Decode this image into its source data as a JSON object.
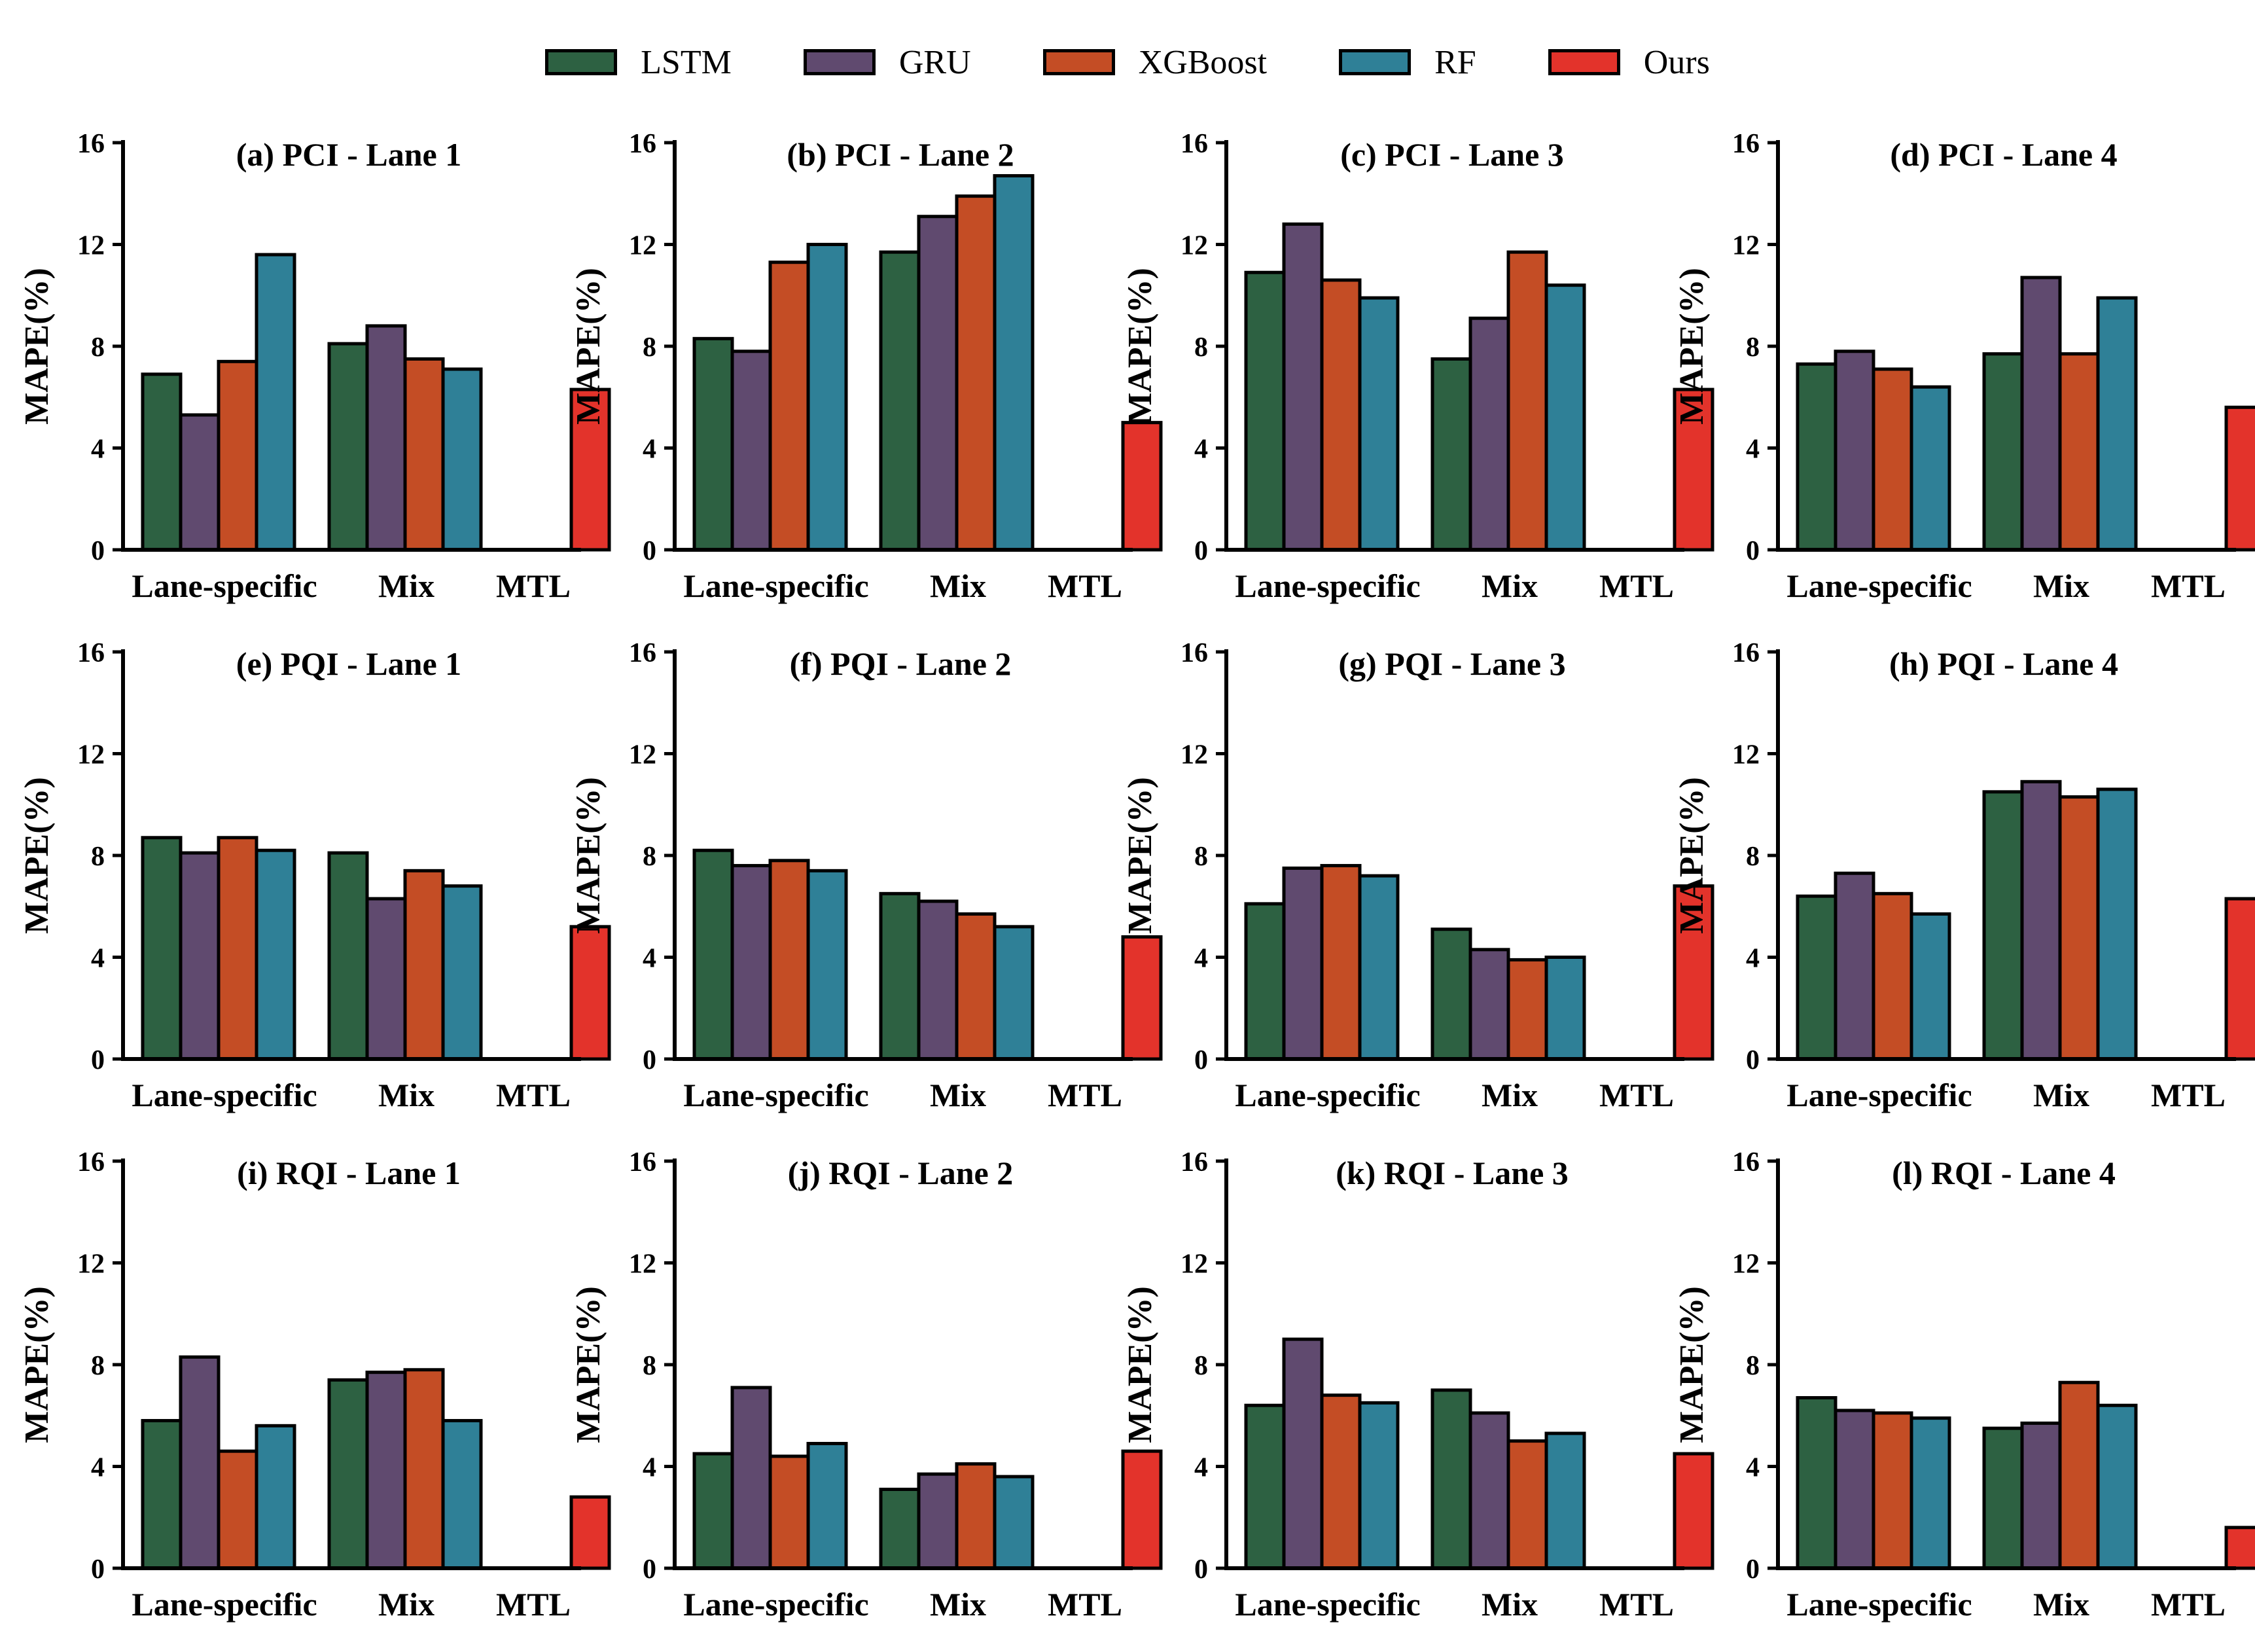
{
  "legend": [
    {
      "name": "LSTM",
      "color": "#2d6142"
    },
    {
      "name": "GRU",
      "color": "#604a6f"
    },
    {
      "name": "XGBoost",
      "color": "#c44d25"
    },
    {
      "name": "RF",
      "color": "#2f8097"
    },
    {
      "name": "Ours",
      "color": "#e3332b"
    }
  ],
  "chart_data": [
    {
      "type": "bar",
      "title": "(a) PCI - Lane 1",
      "ylabel": "MAPE(%)",
      "ylim": [
        0,
        16
      ],
      "yticks": [
        0,
        4,
        8,
        12,
        16
      ],
      "categories": [
        "Lane-specific",
        "Mix",
        "MTL"
      ],
      "series": [
        {
          "name": "LSTM",
          "values": [
            6.9,
            8.1,
            null
          ]
        },
        {
          "name": "GRU",
          "values": [
            5.3,
            8.8,
            null
          ]
        },
        {
          "name": "XGBoost",
          "values": [
            7.4,
            7.5,
            null
          ]
        },
        {
          "name": "RF",
          "values": [
            11.6,
            7.1,
            null
          ]
        },
        {
          "name": "Ours",
          "values": [
            null,
            null,
            6.3
          ]
        }
      ]
    },
    {
      "type": "bar",
      "title": "(b) PCI - Lane 2",
      "ylabel": "MAPE(%)",
      "ylim": [
        0,
        16
      ],
      "yticks": [
        0,
        4,
        8,
        12,
        16
      ],
      "categories": [
        "Lane-specific",
        "Mix",
        "MTL"
      ],
      "series": [
        {
          "name": "LSTM",
          "values": [
            8.3,
            11.7,
            null
          ]
        },
        {
          "name": "GRU",
          "values": [
            7.8,
            13.1,
            null
          ]
        },
        {
          "name": "XGBoost",
          "values": [
            11.3,
            13.9,
            null
          ]
        },
        {
          "name": "RF",
          "values": [
            12.0,
            14.7,
            null
          ]
        },
        {
          "name": "Ours",
          "values": [
            null,
            null,
            5.0
          ]
        }
      ]
    },
    {
      "type": "bar",
      "title": "(c) PCI - Lane 3",
      "ylabel": "MAPE(%)",
      "ylim": [
        0,
        16
      ],
      "yticks": [
        0,
        4,
        8,
        12,
        16
      ],
      "categories": [
        "Lane-specific",
        "Mix",
        "MTL"
      ],
      "series": [
        {
          "name": "LSTM",
          "values": [
            10.9,
            7.5,
            null
          ]
        },
        {
          "name": "GRU",
          "values": [
            12.8,
            9.1,
            null
          ]
        },
        {
          "name": "XGBoost",
          "values": [
            10.6,
            11.7,
            null
          ]
        },
        {
          "name": "RF",
          "values": [
            9.9,
            10.4,
            null
          ]
        },
        {
          "name": "Ours",
          "values": [
            null,
            null,
            6.3
          ]
        }
      ]
    },
    {
      "type": "bar",
      "title": "(d) PCI - Lane 4",
      "ylabel": "MAPE(%)",
      "ylim": [
        0,
        16
      ],
      "yticks": [
        0,
        4,
        8,
        12,
        16
      ],
      "categories": [
        "Lane-specific",
        "Mix",
        "MTL"
      ],
      "series": [
        {
          "name": "LSTM",
          "values": [
            7.3,
            7.7,
            null
          ]
        },
        {
          "name": "GRU",
          "values": [
            7.8,
            10.7,
            null
          ]
        },
        {
          "name": "XGBoost",
          "values": [
            7.1,
            7.7,
            null
          ]
        },
        {
          "name": "RF",
          "values": [
            6.4,
            9.9,
            null
          ]
        },
        {
          "name": "Ours",
          "values": [
            null,
            null,
            5.6
          ]
        }
      ]
    },
    {
      "type": "bar",
      "title": "(e) PQI - Lane 1",
      "ylabel": "MAPE(%)",
      "ylim": [
        0,
        16
      ],
      "yticks": [
        0,
        4,
        8,
        12,
        16
      ],
      "categories": [
        "Lane-specific",
        "Mix",
        "MTL"
      ],
      "series": [
        {
          "name": "LSTM",
          "values": [
            8.7,
            8.1,
            null
          ]
        },
        {
          "name": "GRU",
          "values": [
            8.1,
            6.3,
            null
          ]
        },
        {
          "name": "XGBoost",
          "values": [
            8.7,
            7.4,
            null
          ]
        },
        {
          "name": "RF",
          "values": [
            8.2,
            6.8,
            null
          ]
        },
        {
          "name": "Ours",
          "values": [
            null,
            null,
            5.2
          ]
        }
      ]
    },
    {
      "type": "bar",
      "title": "(f) PQI - Lane 2",
      "ylabel": "MAPE(%)",
      "ylim": [
        0,
        16
      ],
      "yticks": [
        0,
        4,
        8,
        12,
        16
      ],
      "categories": [
        "Lane-specific",
        "Mix",
        "MTL"
      ],
      "series": [
        {
          "name": "LSTM",
          "values": [
            8.2,
            6.5,
            null
          ]
        },
        {
          "name": "GRU",
          "values": [
            7.6,
            6.2,
            null
          ]
        },
        {
          "name": "XGBoost",
          "values": [
            7.8,
            5.7,
            null
          ]
        },
        {
          "name": "RF",
          "values": [
            7.4,
            5.2,
            null
          ]
        },
        {
          "name": "Ours",
          "values": [
            null,
            null,
            4.8
          ]
        }
      ]
    },
    {
      "type": "bar",
      "title": "(g) PQI - Lane 3",
      "ylabel": "MAPE(%)",
      "ylim": [
        0,
        16
      ],
      "yticks": [
        0,
        4,
        8,
        12,
        16
      ],
      "categories": [
        "Lane-specific",
        "Mix",
        "MTL"
      ],
      "series": [
        {
          "name": "LSTM",
          "values": [
            6.1,
            5.1,
            null
          ]
        },
        {
          "name": "GRU",
          "values": [
            7.5,
            4.3,
            null
          ]
        },
        {
          "name": "XGBoost",
          "values": [
            7.6,
            3.9,
            null
          ]
        },
        {
          "name": "RF",
          "values": [
            7.2,
            4.0,
            null
          ]
        },
        {
          "name": "Ours",
          "values": [
            null,
            null,
            6.8
          ]
        }
      ]
    },
    {
      "type": "bar",
      "title": "(h) PQI - Lane 4",
      "ylabel": "MAPE(%)",
      "ylim": [
        0,
        16
      ],
      "yticks": [
        0,
        4,
        8,
        12,
        16
      ],
      "categories": [
        "Lane-specific",
        "Mix",
        "MTL"
      ],
      "series": [
        {
          "name": "LSTM",
          "values": [
            6.4,
            10.5,
            null
          ]
        },
        {
          "name": "GRU",
          "values": [
            7.3,
            10.9,
            null
          ]
        },
        {
          "name": "XGBoost",
          "values": [
            6.5,
            10.3,
            null
          ]
        },
        {
          "name": "RF",
          "values": [
            5.7,
            10.6,
            null
          ]
        },
        {
          "name": "Ours",
          "values": [
            null,
            null,
            6.3
          ]
        }
      ]
    },
    {
      "type": "bar",
      "title": "(i) RQI - Lane 1",
      "ylabel": "MAPE(%)",
      "ylim": [
        0,
        16
      ],
      "yticks": [
        0,
        4,
        8,
        12,
        16
      ],
      "categories": [
        "Lane-specific",
        "Mix",
        "MTL"
      ],
      "series": [
        {
          "name": "LSTM",
          "values": [
            5.8,
            7.4,
            null
          ]
        },
        {
          "name": "GRU",
          "values": [
            8.3,
            7.7,
            null
          ]
        },
        {
          "name": "XGBoost",
          "values": [
            4.6,
            7.8,
            null
          ]
        },
        {
          "name": "RF",
          "values": [
            5.6,
            5.8,
            null
          ]
        },
        {
          "name": "Ours",
          "values": [
            null,
            null,
            2.8
          ]
        }
      ]
    },
    {
      "type": "bar",
      "title": "(j) RQI - Lane 2",
      "ylabel": "MAPE(%)",
      "ylim": [
        0,
        16
      ],
      "yticks": [
        0,
        4,
        8,
        12,
        16
      ],
      "categories": [
        "Lane-specific",
        "Mix",
        "MTL"
      ],
      "series": [
        {
          "name": "LSTM",
          "values": [
            4.5,
            3.1,
            null
          ]
        },
        {
          "name": "GRU",
          "values": [
            7.1,
            3.7,
            null
          ]
        },
        {
          "name": "XGBoost",
          "values": [
            4.4,
            4.1,
            null
          ]
        },
        {
          "name": "RF",
          "values": [
            4.9,
            3.6,
            null
          ]
        },
        {
          "name": "Ours",
          "values": [
            null,
            null,
            4.6
          ]
        }
      ]
    },
    {
      "type": "bar",
      "title": "(k) RQI - Lane 3",
      "ylabel": "MAPE(%)",
      "ylim": [
        0,
        16
      ],
      "yticks": [
        0,
        4,
        8,
        12,
        16
      ],
      "categories": [
        "Lane-specific",
        "Mix",
        "MTL"
      ],
      "series": [
        {
          "name": "LSTM",
          "values": [
            6.4,
            7.0,
            null
          ]
        },
        {
          "name": "GRU",
          "values": [
            9.0,
            6.1,
            null
          ]
        },
        {
          "name": "XGBoost",
          "values": [
            6.8,
            5.0,
            null
          ]
        },
        {
          "name": "RF",
          "values": [
            6.5,
            5.3,
            null
          ]
        },
        {
          "name": "Ours",
          "values": [
            null,
            null,
            4.5
          ]
        }
      ]
    },
    {
      "type": "bar",
      "title": "(l) RQI - Lane 4",
      "ylabel": "MAPE(%)",
      "ylim": [
        0,
        16
      ],
      "yticks": [
        0,
        4,
        8,
        12,
        16
      ],
      "categories": [
        "Lane-specific",
        "Mix",
        "MTL"
      ],
      "series": [
        {
          "name": "LSTM",
          "values": [
            6.7,
            5.5,
            null
          ]
        },
        {
          "name": "GRU",
          "values": [
            6.2,
            5.7,
            null
          ]
        },
        {
          "name": "XGBoost",
          "values": [
            6.1,
            7.3,
            null
          ]
        },
        {
          "name": "RF",
          "values": [
            5.9,
            6.4,
            null
          ]
        },
        {
          "name": "Ours",
          "values": [
            null,
            null,
            1.6
          ]
        }
      ]
    }
  ]
}
